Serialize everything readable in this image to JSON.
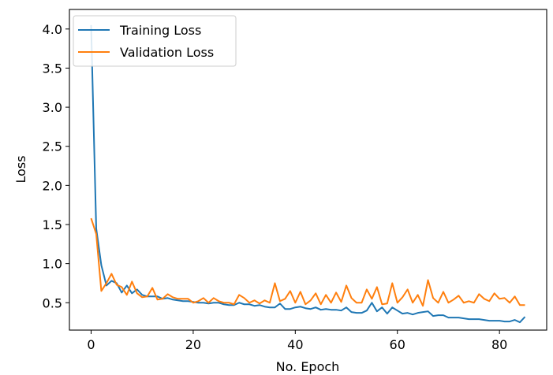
{
  "chart_data": {
    "type": "line",
    "title": "",
    "xlabel": "No. Epoch",
    "ylabel": "Loss",
    "xlim": [
      -4.25,
      89.25
    ],
    "ylim": [
      0.15,
      4.25
    ],
    "xticks": [
      0,
      20,
      40,
      60,
      80
    ],
    "yticks": [
      0.5,
      1.0,
      1.5,
      2.0,
      2.5,
      3.0,
      3.5,
      4.0
    ],
    "ytick_labels": [
      "0.5",
      "1.0",
      "1.5",
      "2.0",
      "2.5",
      "3.0",
      "3.5",
      "4.0"
    ],
    "grid": false,
    "legend_position": "top-left",
    "series": [
      {
        "name": "Training Loss",
        "color": "#1f77b4",
        "values": [
          4.05,
          1.45,
          0.98,
          0.72,
          0.78,
          0.75,
          0.63,
          0.72,
          0.62,
          0.67,
          0.6,
          0.58,
          0.58,
          0.58,
          0.55,
          0.56,
          0.54,
          0.53,
          0.52,
          0.52,
          0.51,
          0.5,
          0.5,
          0.49,
          0.5,
          0.5,
          0.48,
          0.47,
          0.47,
          0.5,
          0.48,
          0.48,
          0.46,
          0.47,
          0.45,
          0.44,
          0.44,
          0.49,
          0.42,
          0.42,
          0.44,
          0.45,
          0.43,
          0.42,
          0.44,
          0.41,
          0.42,
          0.41,
          0.41,
          0.4,
          0.44,
          0.38,
          0.37,
          0.37,
          0.4,
          0.5,
          0.39,
          0.44,
          0.36,
          0.44,
          0.4,
          0.36,
          0.37,
          0.35,
          0.37,
          0.38,
          0.39,
          0.33,
          0.34,
          0.34,
          0.31,
          0.31,
          0.31,
          0.3,
          0.29,
          0.29,
          0.29,
          0.28,
          0.27,
          0.27,
          0.27,
          0.26,
          0.26,
          0.28,
          0.25,
          0.32
        ]
      },
      {
        "name": "Validation Loss",
        "color": "#ff7f0e",
        "values": [
          1.58,
          1.38,
          0.65,
          0.75,
          0.87,
          0.73,
          0.7,
          0.6,
          0.77,
          0.62,
          0.57,
          0.58,
          0.69,
          0.54,
          0.55,
          0.61,
          0.57,
          0.55,
          0.55,
          0.55,
          0.5,
          0.52,
          0.56,
          0.5,
          0.56,
          0.52,
          0.5,
          0.5,
          0.48,
          0.6,
          0.56,
          0.5,
          0.53,
          0.49,
          0.53,
          0.5,
          0.75,
          0.52,
          0.55,
          0.65,
          0.5,
          0.64,
          0.48,
          0.53,
          0.62,
          0.48,
          0.6,
          0.5,
          0.63,
          0.51,
          0.72,
          0.56,
          0.5,
          0.5,
          0.67,
          0.55,
          0.7,
          0.48,
          0.49,
          0.75,
          0.5,
          0.57,
          0.67,
          0.5,
          0.6,
          0.46,
          0.79,
          0.56,
          0.5,
          0.64,
          0.5,
          0.54,
          0.59,
          0.5,
          0.52,
          0.5,
          0.61,
          0.55,
          0.52,
          0.62,
          0.55,
          0.56,
          0.5,
          0.58,
          0.47,
          0.47
        ]
      }
    ]
  }
}
